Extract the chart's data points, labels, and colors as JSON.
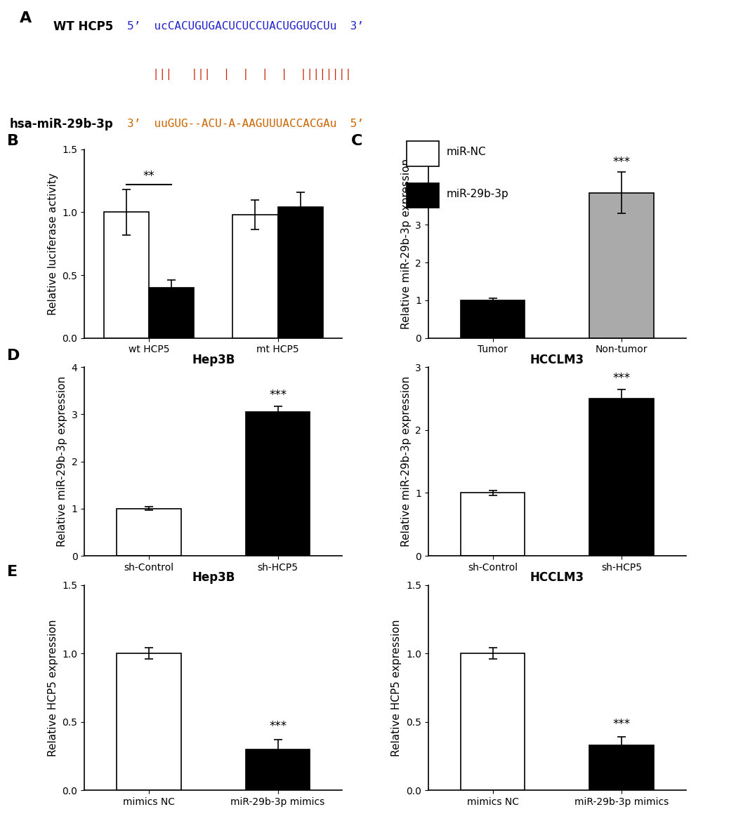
{
  "panel_A": {
    "wt_label": "WT HCP5",
    "wt_seq_blue": "5’  ucCACUGUGACUCUCCUACUGGUGCUu  3’",
    "mir_label": "hsa-miR-29b-3p",
    "mir_seq_orange": "3’  uuGUG--ACU-A-AAGUUUACCACGAu  5’",
    "bars_line": "    |||   |||  |  |  |  |  ||||||||",
    "wt_color": "#2222cc",
    "mir_color": "#cc6600",
    "bars_color": "#cc2200"
  },
  "panel_B": {
    "groups": [
      "wt HCP5",
      "mt HCP5"
    ],
    "miR_NC": [
      1.0,
      0.98
    ],
    "miR_NC_err": [
      0.18,
      0.12
    ],
    "miR_29b": [
      0.4,
      1.04
    ],
    "miR_29b_err": [
      0.06,
      0.12
    ],
    "ylabel": "Relative luciferase activity",
    "ylim": [
      0.0,
      1.5
    ],
    "yticks": [
      0.0,
      0.5,
      1.0,
      1.5
    ],
    "sig_text": "**",
    "legend_labels": [
      "miR-NC",
      "miR-29b-3p"
    ]
  },
  "panel_C": {
    "categories": [
      "Tumor",
      "Non-tumor"
    ],
    "values": [
      1.0,
      3.85
    ],
    "errors": [
      0.06,
      0.55
    ],
    "colors": [
      "#000000",
      "#aaaaaa"
    ],
    "ylabel": "Relative miR-29b-3p expression",
    "ylim": [
      0,
      5
    ],
    "yticks": [
      0,
      1,
      2,
      3,
      4,
      5
    ],
    "sig_text": "***"
  },
  "panel_D_Hep3B": {
    "categories": [
      "sh-Control",
      "sh-HCP5"
    ],
    "values": [
      1.0,
      3.05
    ],
    "errors": [
      0.04,
      0.12
    ],
    "colors": [
      "#ffffff",
      "#000000"
    ],
    "edgecolors": [
      "#000000",
      "#000000"
    ],
    "ylabel": "Relative miR-29b-3p expression",
    "ylim": [
      0,
      4
    ],
    "yticks": [
      0,
      1,
      2,
      3,
      4
    ],
    "title": "Hep3B",
    "sig_text": "***"
  },
  "panel_D_HCCLM3": {
    "categories": [
      "sh-Control",
      "sh-HCP5"
    ],
    "values": [
      1.0,
      2.5
    ],
    "errors": [
      0.04,
      0.15
    ],
    "colors": [
      "#ffffff",
      "#000000"
    ],
    "edgecolors": [
      "#000000",
      "#000000"
    ],
    "ylabel": "Relative miR-29b-3p expression",
    "ylim": [
      0,
      3
    ],
    "yticks": [
      0,
      1,
      2,
      3
    ],
    "title": "HCCLM3",
    "sig_text": "***"
  },
  "panel_E_Hep3B": {
    "categories": [
      "mimics NC",
      "miR-29b-3p mimics"
    ],
    "values": [
      1.0,
      0.3
    ],
    "errors": [
      0.04,
      0.07
    ],
    "colors": [
      "#ffffff",
      "#000000"
    ],
    "edgecolors": [
      "#000000",
      "#000000"
    ],
    "ylabel": "Relative HCP5 expression",
    "ylim": [
      0,
      1.5
    ],
    "yticks": [
      0,
      0.5,
      1.0,
      1.5
    ],
    "title": "Hep3B",
    "sig_text": "***"
  },
  "panel_E_HCCLM3": {
    "categories": [
      "mimics NC",
      "miR-29b-3p mimics"
    ],
    "values": [
      1.0,
      0.33
    ],
    "errors": [
      0.04,
      0.06
    ],
    "colors": [
      "#ffffff",
      "#000000"
    ],
    "edgecolors": [
      "#000000",
      "#000000"
    ],
    "ylabel": "Relative HCP5 expression",
    "ylim": [
      0,
      1.5
    ],
    "yticks": [
      0,
      0.5,
      1.0,
      1.5
    ],
    "title": "HCCLM3",
    "sig_text": "***"
  },
  "label_fontsize": 11,
  "tick_fontsize": 10,
  "title_fontsize": 12,
  "panel_label_fontsize": 16,
  "bar_width": 0.35,
  "background_color": "#ffffff"
}
